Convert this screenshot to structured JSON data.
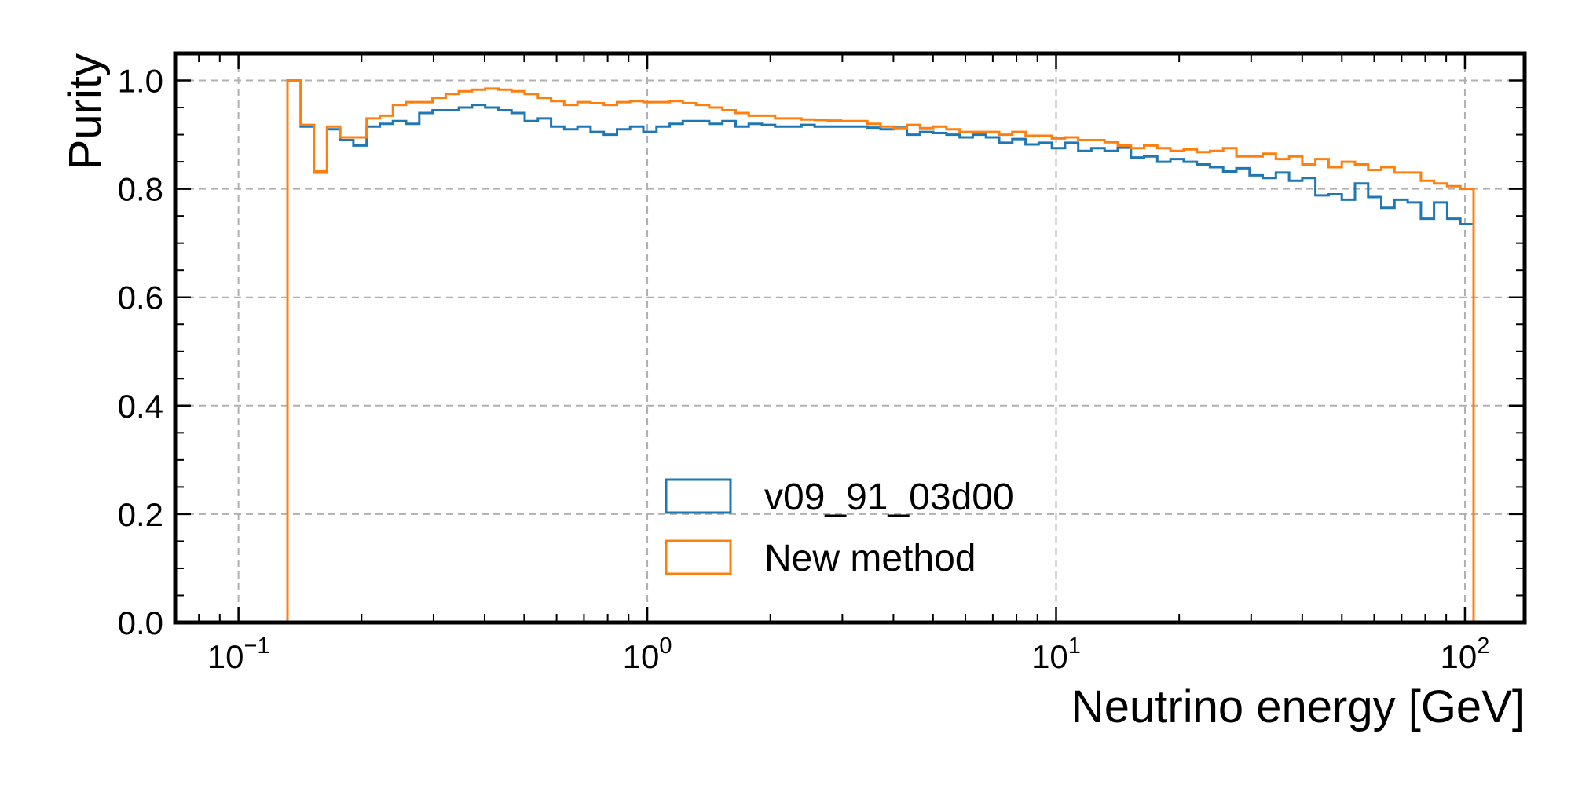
{
  "chart_data": {
    "type": "line",
    "style": "step-histogram",
    "title": "",
    "xlabel": "Neutrino energy [GeV]",
    "ylabel": "Purity",
    "xscale": "log",
    "xlim": [
      0.07,
      140
    ],
    "ylim": [
      0.0,
      1.05
    ],
    "grid": true,
    "legend_position": "lower-center",
    "x_ticks": [
      {
        "value": 0.1,
        "base": "10",
        "exp": "−1"
      },
      {
        "value": 1,
        "base": "10",
        "exp": "0"
      },
      {
        "value": 10,
        "base": "10",
        "exp": "1"
      },
      {
        "value": 100,
        "base": "10",
        "exp": "2"
      }
    ],
    "y_ticks": [
      {
        "value": 0.0,
        "label": "0.0"
      },
      {
        "value": 0.2,
        "label": "0.2"
      },
      {
        "value": 0.4,
        "label": "0.4"
      },
      {
        "value": 0.6,
        "label": "0.6"
      },
      {
        "value": 0.8,
        "label": "0.8"
      },
      {
        "value": 1.0,
        "label": "1.0"
      }
    ],
    "bins": {
      "x_min": 0.1318,
      "x_max": 105,
      "count": 90
    },
    "series": [
      {
        "name": "v09_91_03d00",
        "color": "#1f77b4",
        "values": [
          1.0,
          0.915,
          0.83,
          0.91,
          0.89,
          0.88,
          0.915,
          0.92,
          0.925,
          0.92,
          0.94,
          0.945,
          0.945,
          0.95,
          0.955,
          0.95,
          0.945,
          0.94,
          0.925,
          0.93,
          0.915,
          0.91,
          0.915,
          0.905,
          0.9,
          0.91,
          0.915,
          0.905,
          0.915,
          0.92,
          0.925,
          0.925,
          0.92,
          0.925,
          0.915,
          0.92,
          0.918,
          0.915,
          0.915,
          0.918,
          0.915,
          0.915,
          0.915,
          0.915,
          0.913,
          0.91,
          0.913,
          0.9,
          0.905,
          0.903,
          0.9,
          0.895,
          0.9,
          0.895,
          0.885,
          0.892,
          0.882,
          0.885,
          0.875,
          0.885,
          0.87,
          0.875,
          0.87,
          0.876,
          0.858,
          0.86,
          0.85,
          0.855,
          0.85,
          0.845,
          0.84,
          0.832,
          0.838,
          0.825,
          0.82,
          0.83,
          0.815,
          0.82,
          0.788,
          0.79,
          0.78,
          0.81,
          0.785,
          0.765,
          0.78,
          0.775,
          0.745,
          0.775,
          0.745,
          0.735
        ]
      },
      {
        "name": "New method",
        "color": "#ff7f0e",
        "values": [
          1.0,
          0.918,
          0.832,
          0.915,
          0.895,
          0.895,
          0.93,
          0.935,
          0.955,
          0.96,
          0.96,
          0.968,
          0.975,
          0.98,
          0.983,
          0.985,
          0.983,
          0.98,
          0.975,
          0.968,
          0.962,
          0.955,
          0.96,
          0.958,
          0.955,
          0.96,
          0.962,
          0.96,
          0.96,
          0.962,
          0.958,
          0.955,
          0.95,
          0.945,
          0.94,
          0.935,
          0.935,
          0.93,
          0.93,
          0.928,
          0.927,
          0.926,
          0.925,
          0.925,
          0.92,
          0.915,
          0.912,
          0.918,
          0.912,
          0.915,
          0.91,
          0.905,
          0.905,
          0.905,
          0.9,
          0.905,
          0.898,
          0.898,
          0.893,
          0.895,
          0.89,
          0.89,
          0.886,
          0.88,
          0.875,
          0.88,
          0.875,
          0.87,
          0.873,
          0.868,
          0.87,
          0.875,
          0.86,
          0.86,
          0.865,
          0.855,
          0.86,
          0.845,
          0.855,
          0.84,
          0.85,
          0.845,
          0.835,
          0.84,
          0.83,
          0.83,
          0.815,
          0.81,
          0.805,
          0.8
        ]
      }
    ]
  }
}
